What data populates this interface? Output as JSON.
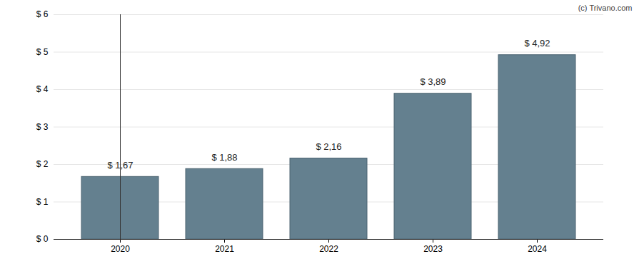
{
  "chart_data": {
    "type": "bar",
    "categories": [
      "2020",
      "2021",
      "2022",
      "2023",
      "2024"
    ],
    "values": [
      1.67,
      1.88,
      2.16,
      3.89,
      4.92
    ],
    "value_labels": [
      "$ 1,67",
      "$ 1,88",
      "$ 2,16",
      "$ 3,89",
      "$ 4,92"
    ],
    "data_labels": true,
    "color": "#64808f",
    "ylim": [
      0,
      6
    ],
    "yticks": [
      {
        "value": 0,
        "label": "$ 0"
      },
      {
        "value": 1,
        "label": "$ 1"
      },
      {
        "value": 2,
        "label": "$ 2"
      },
      {
        "value": 3,
        "label": "$ 3"
      },
      {
        "value": 4,
        "label": "$ 4"
      },
      {
        "value": 5,
        "label": "$ 5"
      },
      {
        "value": 6,
        "label": "$ 6"
      }
    ],
    "grid": true,
    "annotations": [
      "(c) Trivano.com"
    ]
  }
}
